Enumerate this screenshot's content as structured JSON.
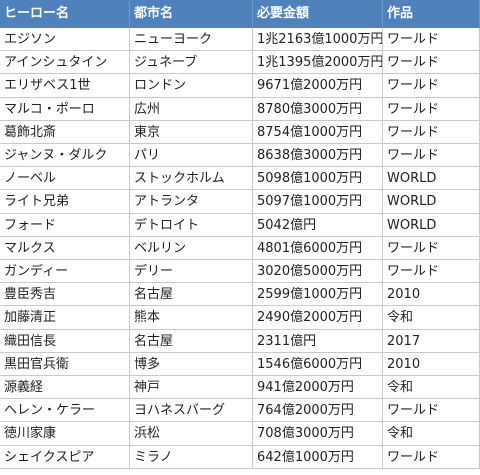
{
  "table": {
    "header": [
      "ヒーロー名",
      "都市名",
      "必要金額",
      "作品"
    ],
    "rows": [
      [
        "エジソン",
        "ニューヨーク",
        "1兆2163億1000万円",
        "ワールド"
      ],
      [
        "アインシュタイン",
        "ジュネーブ",
        "1兆1395億2000万円",
        "ワールド"
      ],
      [
        "エリザベス1世",
        "ロンドン",
        "9671億2000万円",
        "ワールド"
      ],
      [
        "マルコ・ポーロ",
        "広州",
        "8780億3000万円",
        "ワールド"
      ],
      [
        "葛飾北斎",
        "東京",
        "8754億1000万円",
        "ワールド"
      ],
      [
        "ジャンヌ・ダルク",
        "パリ",
        "8638億3000万円",
        "ワールド"
      ],
      [
        "ノーベル",
        "ストックホルム",
        "5098億1000万円",
        "WORLD"
      ],
      [
        "ライト兄弟",
        "アトランタ",
        "5097億1000万円",
        "WORLD"
      ],
      [
        "フォード",
        "デトロイト",
        "5042億円",
        "WORLD"
      ],
      [
        "マルクス",
        "ベルリン",
        "4801億6000万円",
        "ワールド"
      ],
      [
        "ガンディー",
        "デリー",
        "3020億5000万円",
        "ワールド"
      ],
      [
        "豊臣秀吉",
        "名古屋",
        "2599億1000万円",
        "2010"
      ],
      [
        "加藤清正",
        "熊本",
        "2490億2000万円",
        "令和"
      ],
      [
        "織田信長",
        "名古屋",
        "2311億円",
        "2017"
      ],
      [
        "黒田官兵衛",
        "博多",
        "1546億6000万円",
        "2010"
      ],
      [
        "源義経",
        "神戸",
        "941億2000万円",
        "令和"
      ],
      [
        "ヘレン・ケラー",
        "ヨハネスバーグ",
        "764億2000万円",
        "ワールド"
      ],
      [
        "徳川家康",
        "浜松",
        "708億3000万円",
        "令和"
      ],
      [
        "シェイクスピア",
        "ミラノ",
        "642億1000万円",
        "ワールド"
      ]
    ]
  }
}
